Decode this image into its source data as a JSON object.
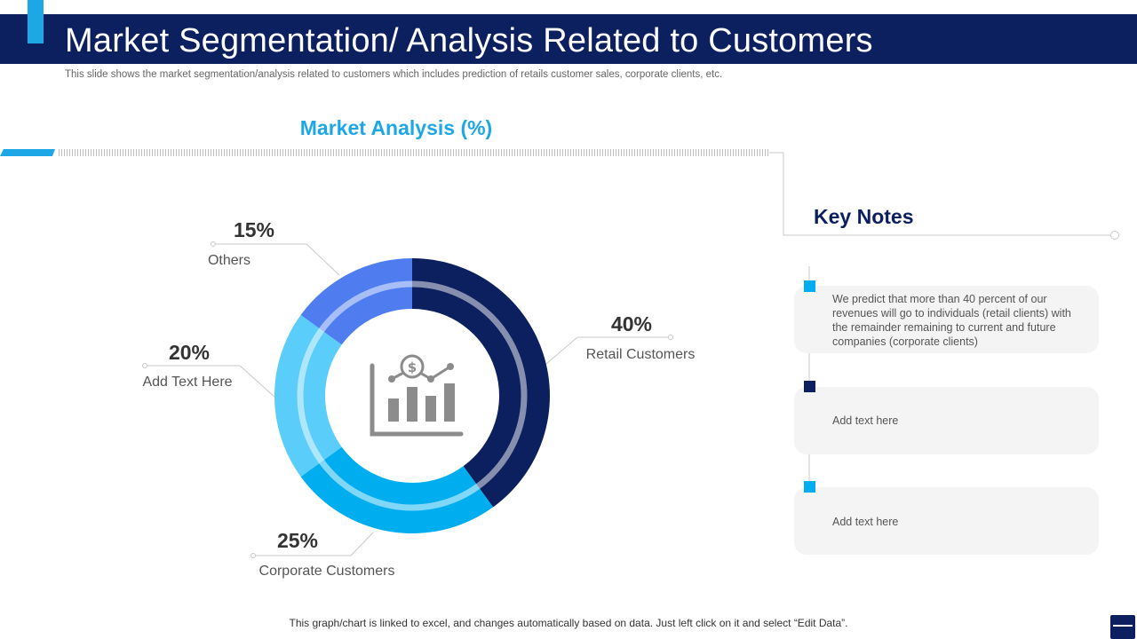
{
  "header": {
    "title": "Market Segmentation/ Analysis Related to Customers",
    "subtitle": "This slide shows the market segmentation/analysis related to customers which includes prediction of retails customer sales, corporate clients, etc."
  },
  "chart_data": {
    "type": "pie",
    "title": "Market Analysis (%)",
    "categories": [
      "Retail Customers",
      "Corporate Customers",
      "Add Text Here",
      "Others"
    ],
    "values": [
      40,
      25,
      20,
      15
    ],
    "value_labels": [
      "40%",
      "25%",
      "20%",
      "15%"
    ],
    "colors": [
      "#0c1f5e",
      "#00aeef",
      "#5bcdfb",
      "#4f7df0"
    ],
    "style": "donut",
    "center_icon": "chart-dollar-icon"
  },
  "key_notes": {
    "title": "Key Notes",
    "notes": [
      {
        "text": "We predict that more than 40 percent of our revenues  will go to individuals  (retail clients) with the remainder remaining to current and future companies (corporate  clients)",
        "marker_color": "#00aeef"
      },
      {
        "text": "Add text here",
        "marker_color": "#0c1f5e"
      },
      {
        "text": "Add text here",
        "marker_color": "#00aeef"
      }
    ]
  },
  "footer": {
    "text": "This graph/chart is linked to excel,  and changes automatically based on data. Just left click on it and select “Edit Data”."
  },
  "theme": {
    "navy": "#0c1f5e",
    "accent": "#1ea7e6"
  }
}
